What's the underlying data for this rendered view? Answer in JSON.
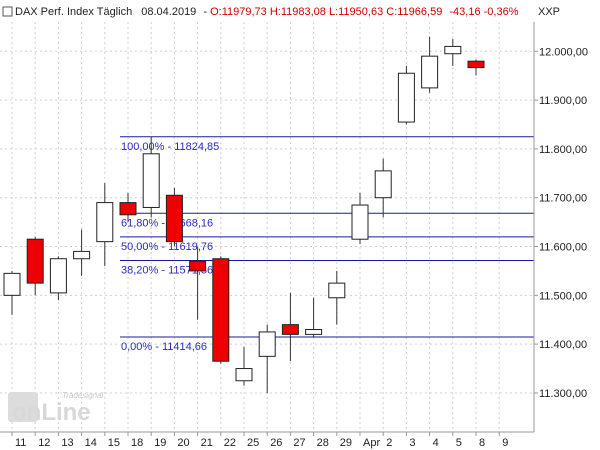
{
  "header": {
    "instrument": "DAX Perf. Index Täglich",
    "date": "08.04.2019",
    "ohlc": "O:11979,73 H:11983,08 L:11950,63 C:11966,59",
    "change": "-43,16 -0,36%",
    "symbol": "XXP"
  },
  "watermark": {
    "small": "Tradesignal",
    "big": "onLine"
  },
  "colors": {
    "up_body": "#ffffff",
    "down_body": "#ee0000",
    "fib_line": "#1a1a9e",
    "fib_text": "#2b2bbf",
    "grid": "#d0d0d0",
    "axis": "#999999"
  },
  "chart_data": {
    "type": "candlestick",
    "ylim": [
      11220,
      12060
    ],
    "y_ticks": [
      "11.300,00",
      "11.400,00",
      "11.500,00",
      "11.600,00",
      "11.700,00",
      "11.800,00",
      "11.900,00",
      "12.000,00"
    ],
    "y_tick_values": [
      11300,
      11400,
      11500,
      11600,
      11700,
      11800,
      11900,
      12000
    ],
    "x_labels": [
      "11",
      "12",
      "13",
      "14",
      "15",
      "18",
      "19",
      "20",
      "21",
      "22",
      "25",
      "26",
      "27",
      "28",
      "29",
      "Apr",
      "2",
      "3",
      "4",
      "5",
      "8",
      "9"
    ],
    "candles": [
      {
        "label": "11",
        "open": 11500,
        "high": 11550,
        "low": 11460,
        "close": 11545
      },
      {
        "label": "12",
        "open": 11615,
        "high": 11620,
        "low": 11500,
        "close": 11525
      },
      {
        "label": "13",
        "open": 11505,
        "high": 11580,
        "low": 11490,
        "close": 11575
      },
      {
        "label": "14",
        "open": 11575,
        "high": 11635,
        "low": 11540,
        "close": 11590
      },
      {
        "label": "15",
        "open": 11610,
        "high": 11730,
        "low": 11560,
        "close": 11690
      },
      {
        "label": "18",
        "open": 11690,
        "high": 11710,
        "low": 11650,
        "close": 11665
      },
      {
        "label": "19",
        "open": 11680,
        "high": 11825,
        "low": 11660,
        "close": 11790
      },
      {
        "label": "20",
        "open": 11705,
        "high": 11720,
        "low": 11600,
        "close": 11610
      },
      {
        "label": "21",
        "open": 11570,
        "high": 11600,
        "low": 11450,
        "close": 11550
      },
      {
        "label": "22",
        "open": 11575,
        "high": 11580,
        "low": 11360,
        "close": 11365
      },
      {
        "label": "25",
        "open": 11325,
        "high": 11395,
        "low": 11315,
        "close": 11350
      },
      {
        "label": "26",
        "open": 11375,
        "high": 11440,
        "low": 11300,
        "close": 11425
      },
      {
        "label": "27",
        "open": 11440,
        "high": 11505,
        "low": 11365,
        "close": 11420
      },
      {
        "label": "28",
        "open": 11420,
        "high": 11495,
        "low": 11415,
        "close": 11430
      },
      {
        "label": "29",
        "open": 11495,
        "high": 11550,
        "low": 11440,
        "close": 11525
      },
      {
        "label": "Apr",
        "open": 11615,
        "high": 11710,
        "low": 11605,
        "close": 11685
      },
      {
        "label": "2",
        "open": 11700,
        "high": 11780,
        "low": 11660,
        "close": 11755
      },
      {
        "label": "3",
        "open": 11855,
        "high": 11970,
        "low": 11850,
        "close": 11955
      },
      {
        "label": "4",
        "open": 11925,
        "high": 12030,
        "low": 11915,
        "close": 11990
      },
      {
        "label": "5",
        "open": 11995,
        "high": 12025,
        "low": 11970,
        "close": 12010
      },
      {
        "label": "8",
        "open": 11979.73,
        "high": 11983.08,
        "low": 11950.63,
        "close": 11966.59
      }
    ],
    "fib_levels": [
      {
        "label": "100,00% - 11824,85",
        "value": 11824.85
      },
      {
        "label": "61,80% - 11668,16",
        "value": 11668.16
      },
      {
        "label": "50,00% - 11619,76",
        "value": 11619.76
      },
      {
        "label": "38,20% - 11571,36",
        "value": 11571.36
      },
      {
        "label": "0,00% - 11414,66",
        "value": 11414.66
      }
    ]
  }
}
